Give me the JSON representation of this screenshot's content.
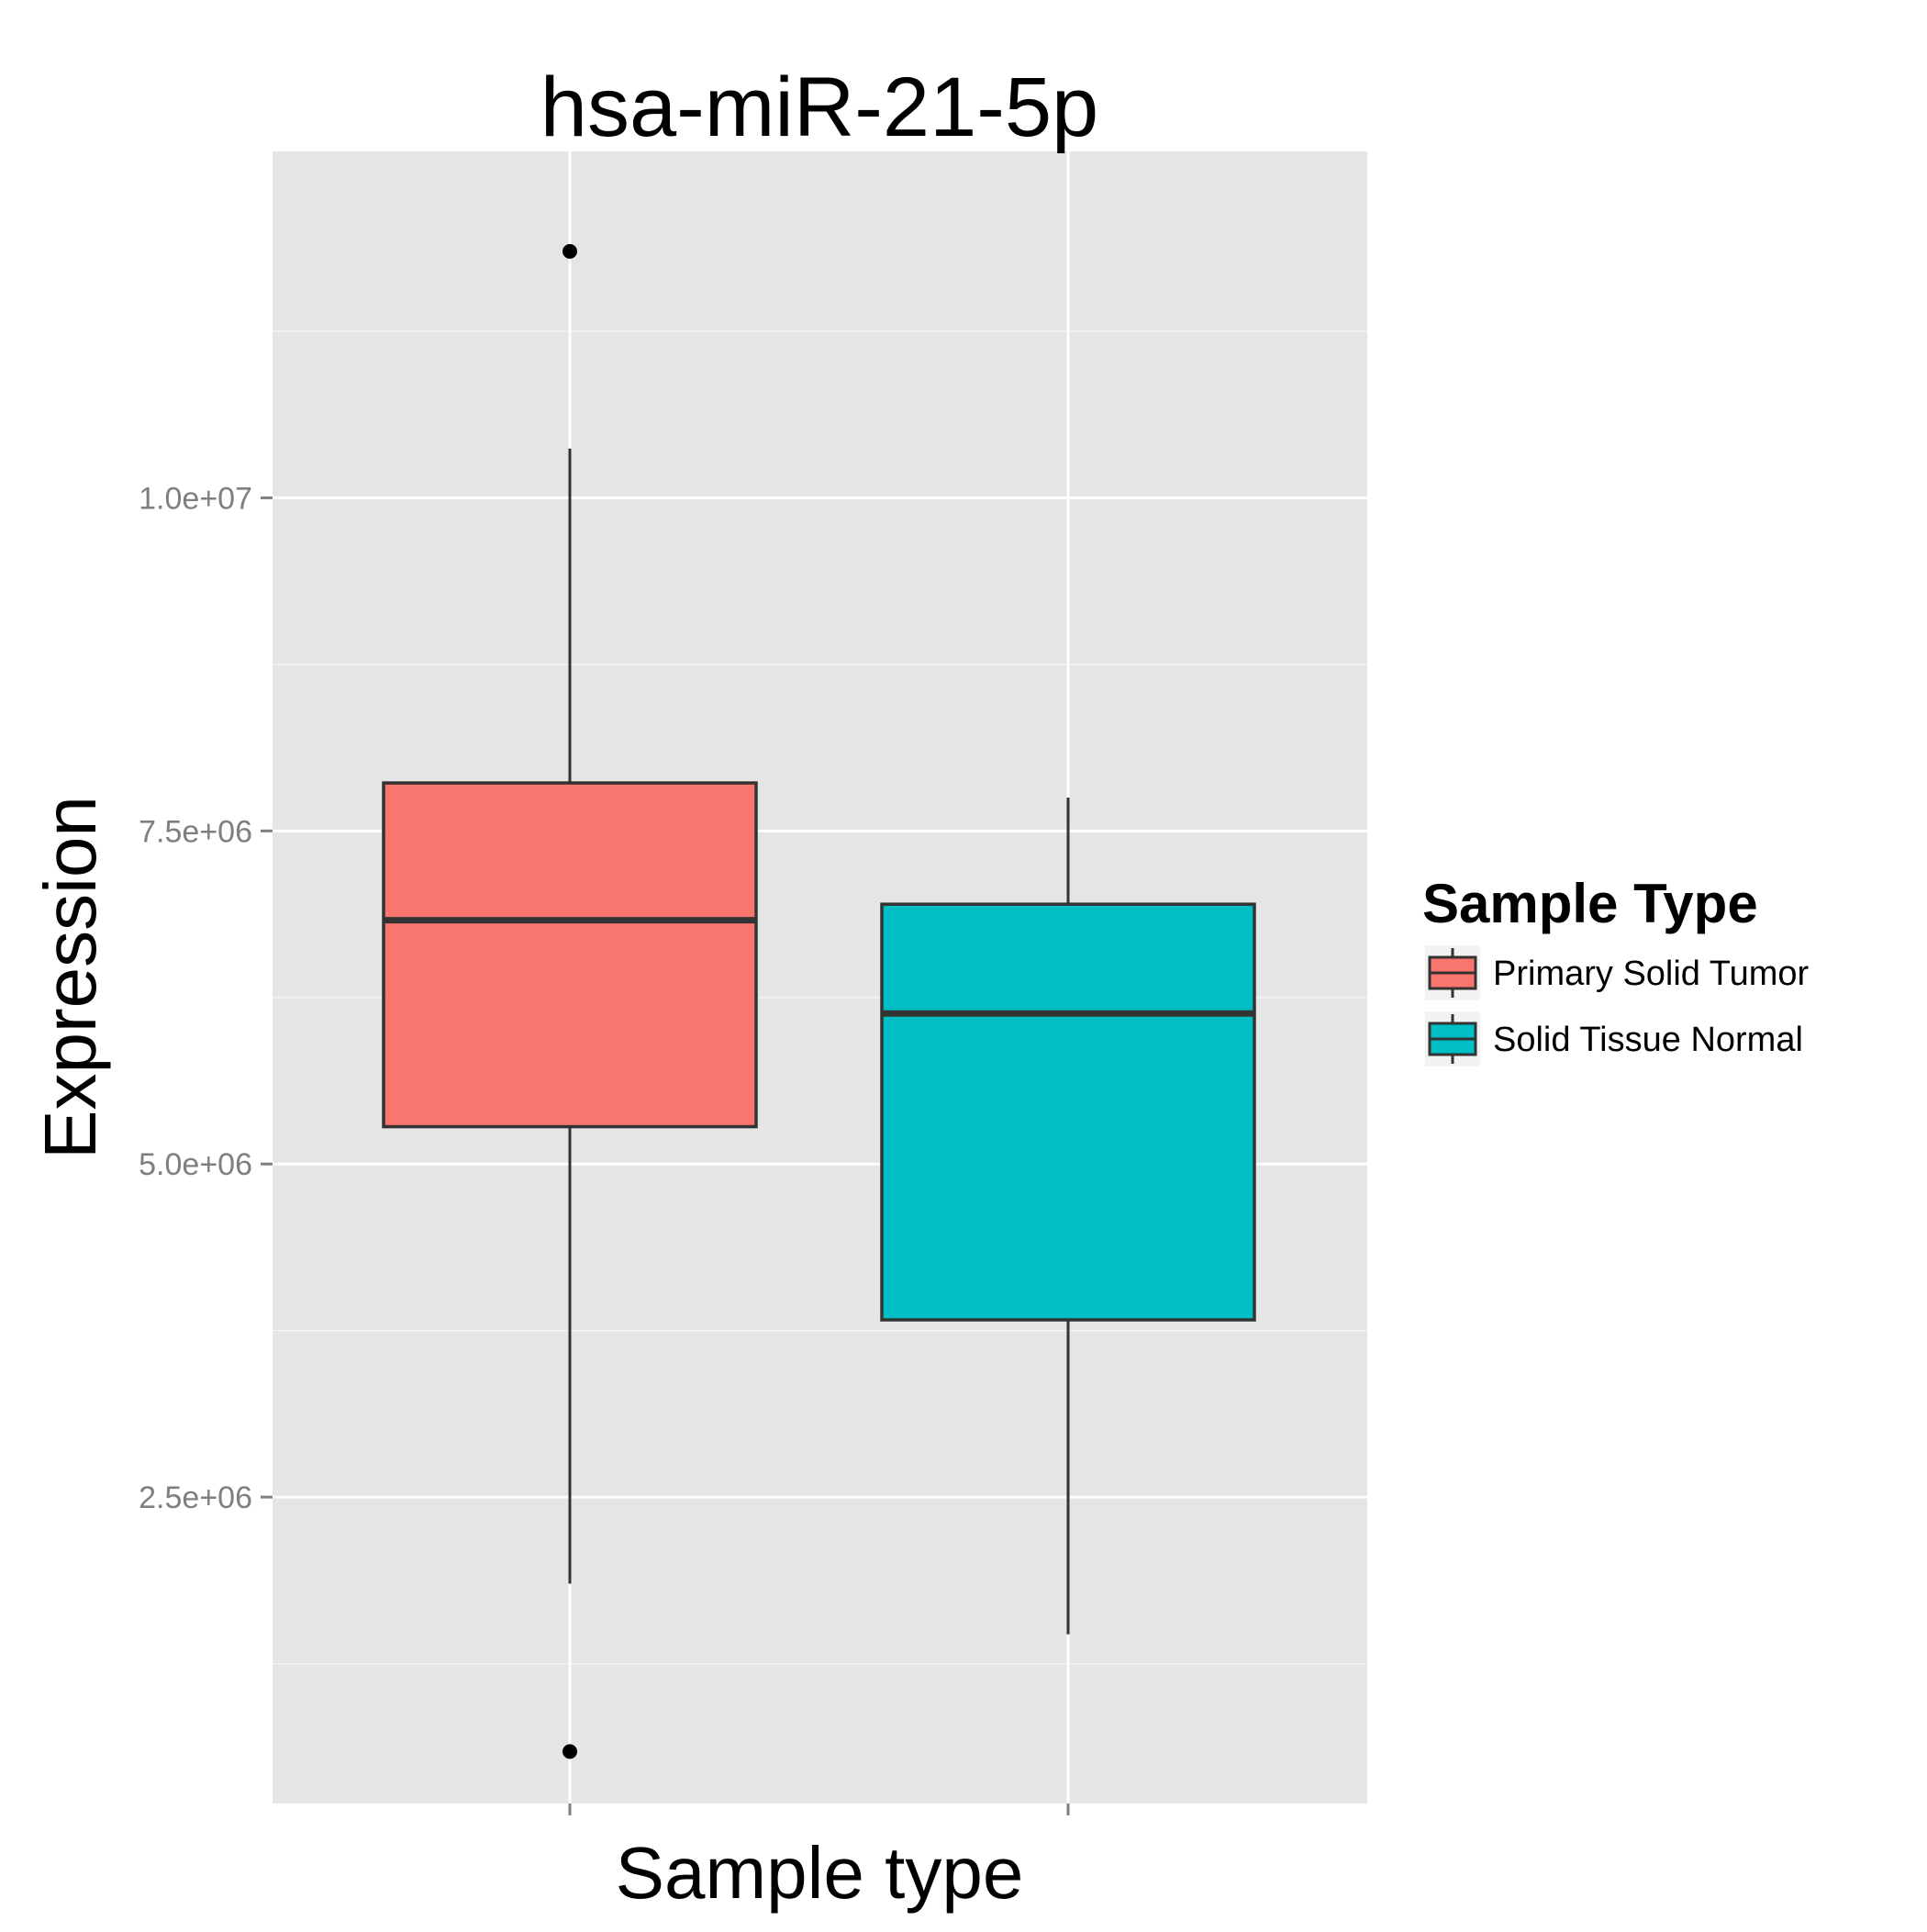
{
  "chart_data": {
    "type": "box",
    "title": "hsa-miR-21-5p",
    "xlabel": "Sample type",
    "ylabel": "Expression",
    "ylim": [
      200000,
      12600000
    ],
    "y_ticks": [
      {
        "value": 2500000,
        "label": "2.5e+06"
      },
      {
        "value": 5000000,
        "label": "5.0e+06"
      },
      {
        "value": 7500000,
        "label": "7.5e+06"
      },
      {
        "value": 10000000,
        "label": "1.0e+07"
      }
    ],
    "y_minor_ticks": [
      1250000,
      3750000,
      6250000,
      8750000,
      11250000
    ],
    "grid": true,
    "legend": {
      "title": "Sample Type",
      "placement": "right"
    },
    "series": [
      {
        "name": "Primary Solid Tumor",
        "color": "#F8766D",
        "whisker_low": 1850000,
        "q1": 5280000,
        "median": 6830000,
        "q3": 7860000,
        "whisker_high": 10370000,
        "outliers": [
          11850000,
          590000
        ]
      },
      {
        "name": "Solid Tissue Normal",
        "color": "#00BFC4",
        "whisker_low": 1470000,
        "q1": 3830000,
        "median": 6130000,
        "q3": 6950000,
        "whisker_high": 7750000,
        "outliers": []
      }
    ],
    "colors": {
      "panel_background": "#E5E5E5",
      "grid": "#FFFFFF",
      "box_outline": "#333333",
      "tick_text": "#7F7F7F"
    }
  }
}
